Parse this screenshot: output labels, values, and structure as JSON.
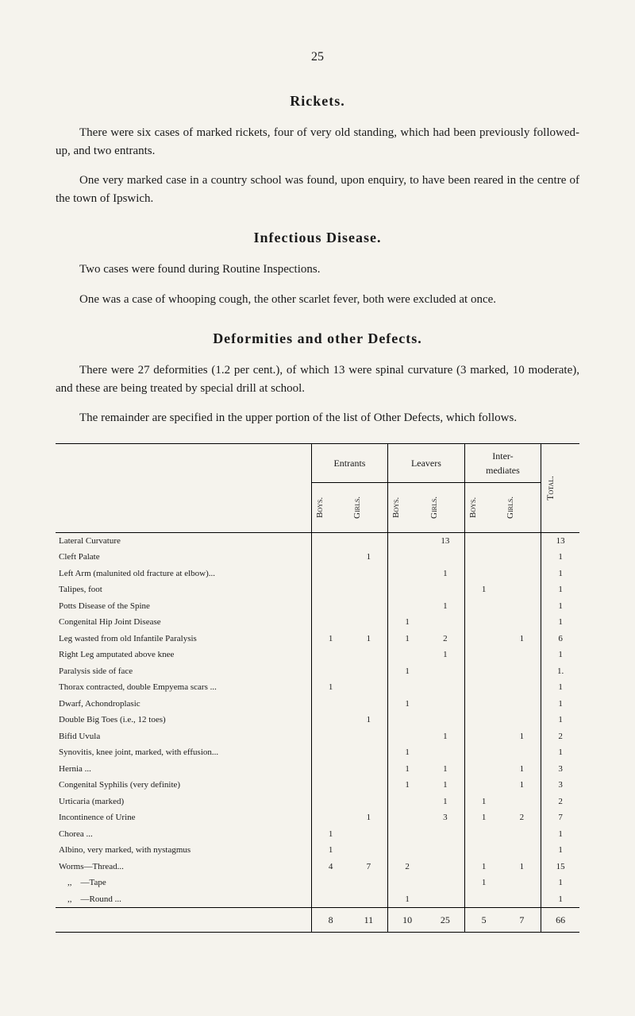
{
  "page_number": "25",
  "sections": [
    {
      "heading": "Rickets.",
      "paragraphs": [
        "There were six cases of marked rickets, four of very old standing, which had been previously followed-up, and two entrants.",
        "One very marked case in a country school was found, upon enquiry, to have been reared in the centre of the town of Ipswich."
      ]
    },
    {
      "heading": "Infectious Disease.",
      "paragraphs": [
        "Two cases were found during Routine Inspections.",
        "One was a case of whooping cough, the other scarlet fever, both were excluded at once."
      ]
    },
    {
      "heading": "Deformities and other Defects.",
      "paragraphs": [
        "There were 27 deformities (1.2 per cent.), of which 13 were spinal curvature (3 marked, 10 moderate), and these are being treated by special drill at school.",
        "The remainder are specified in the upper portion of the list of Other Defects, which follows."
      ]
    }
  ],
  "table": {
    "group_headers": [
      "Entrants",
      "Leavers",
      "Inter-\nmediates"
    ],
    "sub_headers": [
      "Boys.",
      "Girls.",
      "Boys.",
      "Girls.",
      "Boys.",
      "Girls."
    ],
    "total_header": "Total.",
    "rows": [
      {
        "label": "Lateral Curvature",
        "values": [
          "",
          "",
          "",
          "13",
          "",
          "",
          "13"
        ]
      },
      {
        "label": "Cleft Palate",
        "values": [
          "",
          "1",
          "",
          "",
          "",
          "",
          "1"
        ]
      },
      {
        "label": "Left Arm (malunited old fracture at elbow)...",
        "values": [
          "",
          "",
          "",
          "1",
          "",
          "",
          "1"
        ]
      },
      {
        "label": "Talipes, foot",
        "values": [
          "",
          "",
          "",
          "",
          "1",
          "",
          "1"
        ]
      },
      {
        "label": "Potts Disease of the Spine",
        "values": [
          "",
          "",
          "",
          "1",
          "",
          "",
          "1"
        ]
      },
      {
        "label": "Congenital Hip Joint Disease",
        "values": [
          "",
          "",
          "1",
          "",
          "",
          "",
          "1"
        ]
      },
      {
        "label": "Leg wasted from old Infantile Paralysis",
        "values": [
          "1",
          "1",
          "1",
          "2",
          "",
          "1",
          "6"
        ]
      },
      {
        "label": "Right Leg amputated above knee",
        "values": [
          "",
          "",
          "",
          "1",
          "",
          "",
          "1"
        ]
      },
      {
        "label": "Paralysis side of face",
        "values": [
          "",
          "",
          "1",
          "",
          "",
          "",
          "1."
        ]
      },
      {
        "label": "Thorax contracted, double Empyema scars ...",
        "values": [
          "1",
          "",
          "",
          "",
          "",
          "",
          "1"
        ]
      },
      {
        "label": "Dwarf, Achondroplasic",
        "values": [
          "",
          "",
          "1",
          "",
          "",
          "",
          "1"
        ]
      },
      {
        "label": "Double Big Toes (i.e., 12 toes)",
        "values": [
          "",
          "1",
          "",
          "",
          "",
          "",
          "1"
        ]
      },
      {
        "label": "Bifid Uvula",
        "values": [
          "",
          "",
          "",
          "1",
          "",
          "1",
          "2"
        ]
      },
      {
        "label": "Synovitis, knee joint, marked, with effusion...",
        "values": [
          "",
          "",
          "1",
          "",
          "",
          "",
          "1"
        ]
      },
      {
        "label": "Hernia ...",
        "values": [
          "",
          "",
          "1",
          "1",
          "",
          "1",
          "3"
        ]
      },
      {
        "label": "Congenital Syphilis (very definite)",
        "values": [
          "",
          "",
          "1",
          "1",
          "",
          "1",
          "3"
        ]
      },
      {
        "label": "Urticaria (marked)",
        "values": [
          "",
          "",
          "",
          "1",
          "1",
          "",
          "2"
        ]
      },
      {
        "label": "Incontinence of Urine",
        "values": [
          "",
          "1",
          "",
          "3",
          "1",
          "2",
          "7"
        ]
      },
      {
        "label": "Chorea ...",
        "values": [
          "1",
          "",
          "",
          "",
          "",
          "",
          "1"
        ]
      },
      {
        "label": "Albino, very marked, with nystagmus",
        "values": [
          "1",
          "",
          "",
          "",
          "",
          "",
          "1"
        ]
      },
      {
        "label": "Worms—Thread...",
        "values": [
          "4",
          "7",
          "2",
          "",
          "1",
          "1",
          "15"
        ]
      },
      {
        "label": "    ,,    —Tape",
        "values": [
          "",
          "",
          "",
          "",
          "1",
          "",
          "1"
        ]
      },
      {
        "label": "    ,,    —Round ...",
        "values": [
          "",
          "",
          "1",
          "",
          "",
          "",
          "1"
        ]
      }
    ],
    "totals": [
      "",
      "8",
      "11",
      "10",
      "25",
      "5",
      "7",
      "66"
    ]
  }
}
